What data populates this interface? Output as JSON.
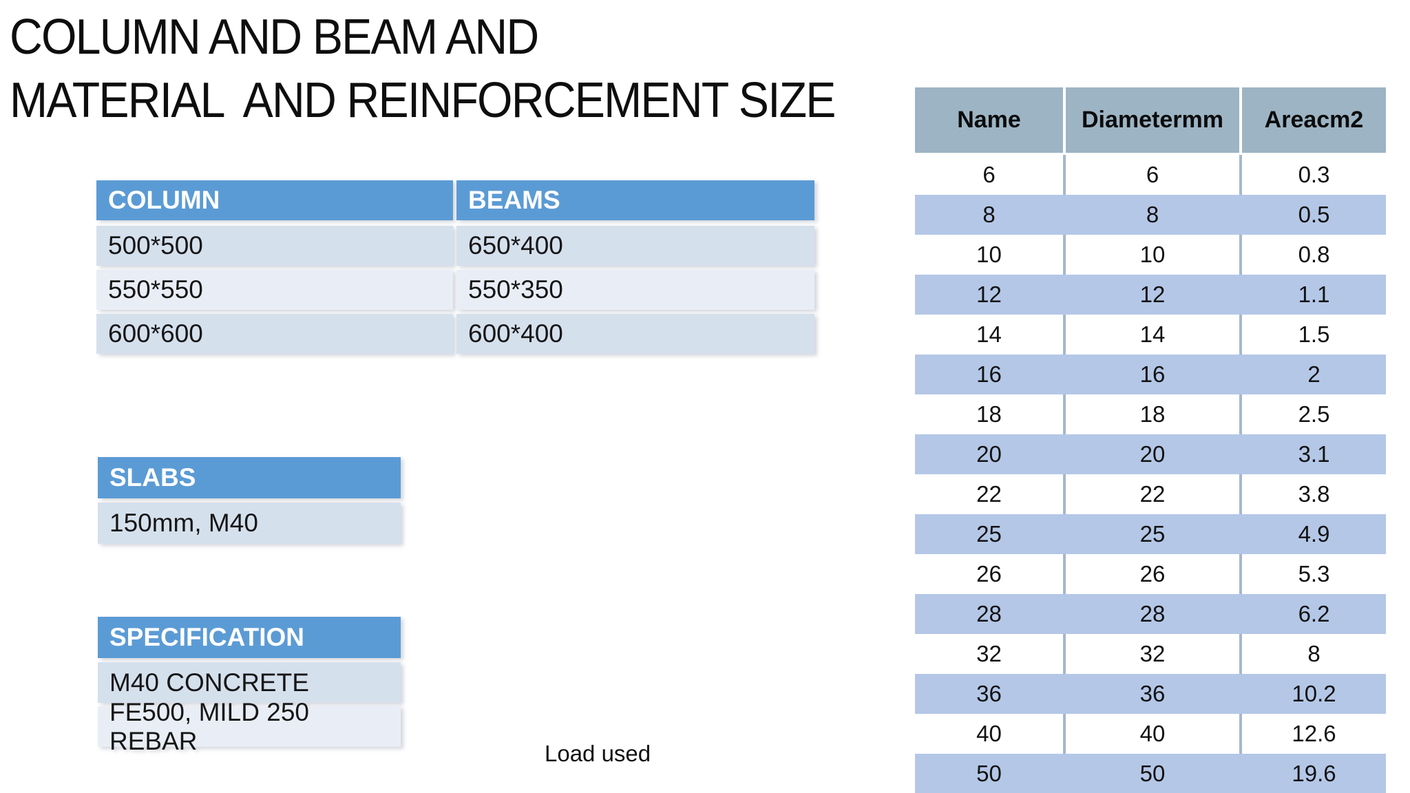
{
  "title": {
    "lines": [
      "COLUMN AND BEAM AND",
      "MATERIAL  AND REINFORCEMENT SIZE"
    ]
  },
  "colors": {
    "accent_blue": "#5B9BD5",
    "band_dark": "#D5E0ED",
    "band_light": "#E9EEF6",
    "reinf_header_bg": "#9DB4C4",
    "reinf_band_blue": "#B4C7E7",
    "reinf_divider": "#A3B8D0",
    "text_dark": "#141414"
  },
  "column_beam_table": {
    "headers": [
      "COLUMN",
      "BEAMS"
    ],
    "rows": [
      [
        "500*500",
        "650*400"
      ],
      [
        "550*550",
        "550*350"
      ],
      [
        "600*600",
        "600*400"
      ]
    ]
  },
  "slabs_table": {
    "header": "SLABS",
    "rows": [
      [
        "150mm, M40"
      ]
    ]
  },
  "specification_table": {
    "header": "SPECIFICATION",
    "rows": [
      [
        "M40 CONCRETE"
      ],
      [
        "FE500, MILD 250 REBAR"
      ]
    ]
  },
  "load_label": "Load used",
  "reinforcement_table": {
    "headers": [
      "Name",
      "Diametermm",
      "Areacm2"
    ],
    "rows": [
      [
        "6",
        "6",
        "0.3"
      ],
      [
        "8",
        "8",
        "0.5"
      ],
      [
        "10",
        "10",
        "0.8"
      ],
      [
        "12",
        "12",
        "1.1"
      ],
      [
        "14",
        "14",
        "1.5"
      ],
      [
        "16",
        "16",
        "2"
      ],
      [
        "18",
        "18",
        "2.5"
      ],
      [
        "20",
        "20",
        "3.1"
      ],
      [
        "22",
        "22",
        "3.8"
      ],
      [
        "25",
        "25",
        "4.9"
      ],
      [
        "26",
        "26",
        "5.3"
      ],
      [
        "28",
        "28",
        "6.2"
      ],
      [
        "32",
        "32",
        "8"
      ],
      [
        "36",
        "36",
        "10.2"
      ],
      [
        "40",
        "40",
        "12.6"
      ],
      [
        "50",
        "50",
        "19.6"
      ]
    ]
  }
}
